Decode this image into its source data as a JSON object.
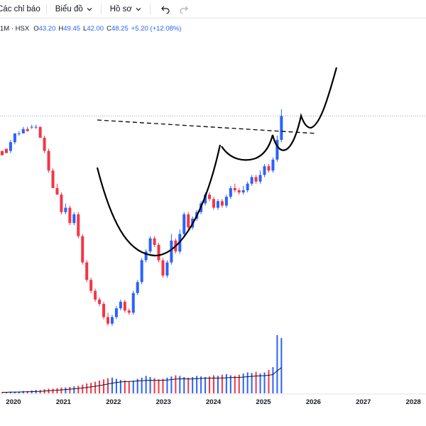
{
  "toolbar": {
    "indicators_label": "Các chỉ báo",
    "chart_type_label": "Biểu đồ",
    "profile_label": "Hồ sơ"
  },
  "legend": {
    "symbol": "1M · HSX",
    "open_key": "O",
    "open": "43.20",
    "high_key": "H",
    "high": "49.45",
    "low_key": "L",
    "low": "42.00",
    "close_key": "C",
    "close": "48.25",
    "change": "+5.20 (+12.08%)"
  },
  "colors": {
    "up": "#2962ff",
    "down": "#f23645",
    "pattern": "#000000",
    "price_line": "#9098f8"
  },
  "chart_data": {
    "type": "candlestick",
    "timeframe": "1M",
    "exchange": "HSX",
    "x_ticks": [
      "2020",
      "2021",
      "2022",
      "2023",
      "2024",
      "2025",
      "2026",
      "2027",
      "2028"
    ],
    "last_bar": {
      "open": 43.2,
      "high": 49.45,
      "low": 42.0,
      "close": 48.25,
      "change": 5.2,
      "change_pct": 12.08
    },
    "candles_relative": [
      [
        0.81,
        0.79,
        0.79,
        0.81
      ],
      [
        0.82,
        0.8,
        0.8,
        0.82
      ],
      [
        0.81,
        0.85,
        0.8,
        0.86
      ],
      [
        0.85,
        0.89,
        0.84,
        0.89
      ],
      [
        0.89,
        0.89,
        0.88,
        0.9
      ],
      [
        0.89,
        0.91,
        0.89,
        0.92
      ],
      [
        0.91,
        0.9,
        0.9,
        0.92
      ],
      [
        0.92,
        0.92,
        0.91,
        0.93
      ],
      [
        0.92,
        0.92,
        0.91,
        0.93
      ],
      [
        0.92,
        0.87,
        0.87,
        0.92
      ],
      [
        0.87,
        0.81,
        0.8,
        0.88
      ],
      [
        0.81,
        0.72,
        0.71,
        0.82
      ],
      [
        0.72,
        0.64,
        0.64,
        0.73
      ],
      [
        0.64,
        0.61,
        0.61,
        0.66
      ],
      [
        0.61,
        0.53,
        0.52,
        0.62
      ],
      [
        0.53,
        0.55,
        0.52,
        0.57
      ],
      [
        0.55,
        0.48,
        0.47,
        0.56
      ],
      [
        0.48,
        0.52,
        0.47,
        0.53
      ],
      [
        0.52,
        0.42,
        0.41,
        0.53
      ],
      [
        0.42,
        0.3,
        0.29,
        0.43
      ],
      [
        0.3,
        0.22,
        0.21,
        0.31
      ],
      [
        0.22,
        0.17,
        0.16,
        0.23
      ],
      [
        0.17,
        0.13,
        0.12,
        0.18
      ],
      [
        0.13,
        0.11,
        0.1,
        0.14
      ],
      [
        0.11,
        0.05,
        0.04,
        0.12
      ],
      [
        0.05,
        0.02,
        0.01,
        0.07
      ],
      [
        0.02,
        0.05,
        0.01,
        0.06
      ],
      [
        0.05,
        0.09,
        0.04,
        0.1
      ],
      [
        0.09,
        0.12,
        0.08,
        0.13
      ],
      [
        0.12,
        0.08,
        0.07,
        0.13
      ],
      [
        0.08,
        0.07,
        0.06,
        0.09
      ],
      [
        0.07,
        0.16,
        0.06,
        0.17
      ],
      [
        0.16,
        0.21,
        0.15,
        0.22
      ],
      [
        0.21,
        0.31,
        0.2,
        0.32
      ],
      [
        0.31,
        0.35,
        0.3,
        0.36
      ],
      [
        0.35,
        0.41,
        0.34,
        0.42
      ],
      [
        0.41,
        0.38,
        0.37,
        0.42
      ],
      [
        0.38,
        0.31,
        0.3,
        0.39
      ],
      [
        0.31,
        0.24,
        0.23,
        0.32
      ],
      [
        0.24,
        0.3,
        0.23,
        0.31
      ],
      [
        0.3,
        0.4,
        0.29,
        0.43
      ],
      [
        0.4,
        0.35,
        0.34,
        0.41
      ],
      [
        0.35,
        0.43,
        0.34,
        0.45
      ],
      [
        0.43,
        0.52,
        0.42,
        0.53
      ],
      [
        0.52,
        0.46,
        0.45,
        0.53
      ],
      [
        0.46,
        0.5,
        0.45,
        0.51
      ],
      [
        0.5,
        0.53,
        0.49,
        0.54
      ],
      [
        0.53,
        0.57,
        0.52,
        0.58
      ],
      [
        0.57,
        0.61,
        0.56,
        0.62
      ],
      [
        0.61,
        0.59,
        0.58,
        0.62
      ],
      [
        0.59,
        0.55,
        0.54,
        0.6
      ],
      [
        0.55,
        0.58,
        0.54,
        0.59
      ],
      [
        0.58,
        0.56,
        0.55,
        0.59
      ],
      [
        0.56,
        0.6,
        0.55,
        0.61
      ],
      [
        0.6,
        0.64,
        0.59,
        0.65
      ],
      [
        0.64,
        0.63,
        0.62,
        0.66
      ],
      [
        0.63,
        0.62,
        0.61,
        0.64
      ],
      [
        0.62,
        0.63,
        0.61,
        0.65
      ],
      [
        0.63,
        0.66,
        0.62,
        0.67
      ],
      [
        0.66,
        0.69,
        0.65,
        0.7
      ],
      [
        0.69,
        0.67,
        0.66,
        0.7
      ],
      [
        0.67,
        0.7,
        0.66,
        0.72
      ],
      [
        0.7,
        0.74,
        0.69,
        0.75
      ],
      [
        0.74,
        0.72,
        0.71,
        0.75
      ],
      [
        0.72,
        0.77,
        0.71,
        0.78
      ],
      [
        0.77,
        0.86,
        0.76,
        0.88
      ],
      [
        0.86,
        0.97,
        0.85,
        1.0
      ]
    ],
    "volume_relative": [
      0.02,
      0.02,
      0.03,
      0.03,
      0.03,
      0.04,
      0.04,
      0.05,
      0.06,
      0.06,
      0.07,
      0.08,
      0.08,
      0.09,
      0.1,
      0.1,
      0.11,
      0.12,
      0.13,
      0.15,
      0.17,
      0.18,
      0.2,
      0.22,
      0.24,
      0.26,
      0.27,
      0.25,
      0.23,
      0.22,
      0.2,
      0.22,
      0.25,
      0.27,
      0.3,
      0.28,
      0.26,
      0.24,
      0.25,
      0.27,
      0.29,
      0.31,
      0.3,
      0.28,
      0.27,
      0.28,
      0.3,
      0.29,
      0.28,
      0.29,
      0.31,
      0.3,
      0.32,
      0.33,
      0.31,
      0.3,
      0.32,
      0.34,
      0.36,
      0.35,
      0.37,
      0.34,
      0.36,
      0.4,
      0.45,
      1.0,
      0.95
    ],
    "overlays": [
      "cup-and-handle pattern",
      "dashed resistance trendline",
      "projected breakout path"
    ]
  }
}
